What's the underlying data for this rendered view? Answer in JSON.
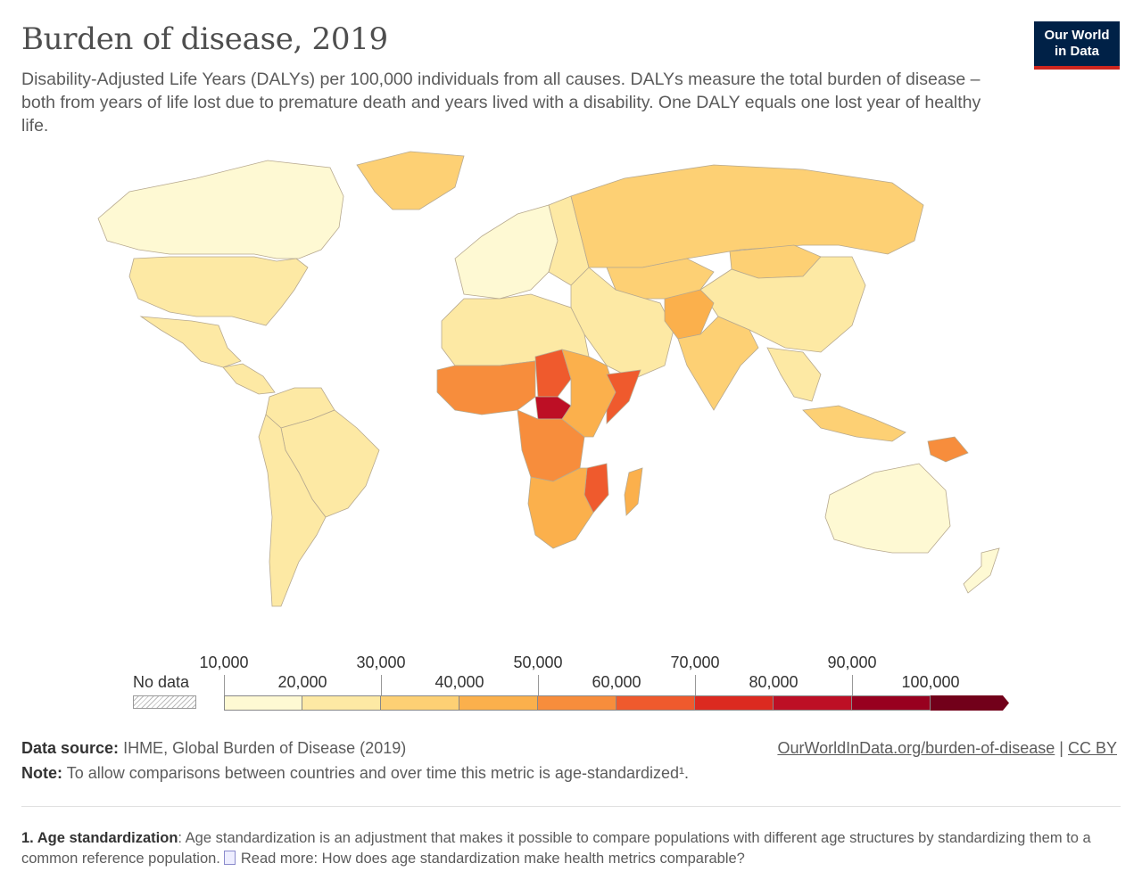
{
  "title": "Burden of disease, 2019",
  "subtitle": "Disability-Adjusted Life Years (DALYs) per 100,000 individuals from all causes. DALYs measure the total burden of disease – both from years of life lost due to premature death and years lived with a disability. One DALY equals one lost year of healthy life.",
  "logo": {
    "line1": "Our World",
    "line2": "in Data",
    "bg": "#002147",
    "accent": "#ce261e"
  },
  "legend": {
    "no_data_label": "No data",
    "upper_labels": [
      "10,000",
      "30,000",
      "50,000",
      "70,000",
      "90,000"
    ],
    "lower_labels": [
      "20,000",
      "40,000",
      "60,000",
      "80,000",
      "100,000"
    ],
    "bins": [
      {
        "min": 10000,
        "max": 20000,
        "color": "#fef9d3"
      },
      {
        "min": 20000,
        "max": 30000,
        "color": "#fde9a4"
      },
      {
        "min": 30000,
        "max": 40000,
        "color": "#fdd074"
      },
      {
        "min": 40000,
        "max": 50000,
        "color": "#fbb04c"
      },
      {
        "min": 50000,
        "max": 60000,
        "color": "#f78d3c"
      },
      {
        "min": 60000,
        "max": 70000,
        "color": "#ef5a2d"
      },
      {
        "min": 70000,
        "max": 80000,
        "color": "#dc2a20"
      },
      {
        "min": 80000,
        "max": 90000,
        "color": "#bd0f25"
      },
      {
        "min": 90000,
        "max": 100000,
        "color": "#98001f"
      },
      {
        "min": 100000,
        "max": 110000,
        "color": "#72001a"
      }
    ]
  },
  "regions": [
    {
      "name": "Canada",
      "value": 15000
    },
    {
      "name": "United States",
      "value": 24000
    },
    {
      "name": "Mexico",
      "value": 24000
    },
    {
      "name": "Central America",
      "value": 26000
    },
    {
      "name": "South America North",
      "value": 26000
    },
    {
      "name": "Brazil",
      "value": 26000
    },
    {
      "name": "South America South",
      "value": 23000
    },
    {
      "name": "Greenland",
      "value": 32000
    },
    {
      "name": "Western Europe",
      "value": 17000
    },
    {
      "name": "Eastern Europe",
      "value": 25000
    },
    {
      "name": "Russia",
      "value": 30000
    },
    {
      "name": "Central Asia",
      "value": 30000
    },
    {
      "name": "Mongolia",
      "value": 36000
    },
    {
      "name": "China",
      "value": 22000
    },
    {
      "name": "Middle East",
      "value": 24000
    },
    {
      "name": "North Africa",
      "value": 25000
    },
    {
      "name": "Pakistan & Afghanistan",
      "value": 48000
    },
    {
      "name": "India",
      "value": 32000
    },
    {
      "name": "Southeast Asia",
      "value": 29000
    },
    {
      "name": "West Africa",
      "value": 52000
    },
    {
      "name": "Chad",
      "value": 65000
    },
    {
      "name": "Central African Republic",
      "value": 85000
    },
    {
      "name": "Central Africa",
      "value": 50000
    },
    {
      "name": "Somalia",
      "value": 62000
    },
    {
      "name": "East Africa",
      "value": 45000
    },
    {
      "name": "Southern Africa",
      "value": 45000
    },
    {
      "name": "Mozambique",
      "value": 62000
    },
    {
      "name": "Madagascar",
      "value": 44000
    },
    {
      "name": "Australia",
      "value": 14000
    },
    {
      "name": "New Zealand",
      "value": 16000
    },
    {
      "name": "Papua New Guinea",
      "value": 55000
    },
    {
      "name": "Indonesia",
      "value": 31000
    }
  ],
  "source": {
    "label": "Data source:",
    "text": "IHME, Global Burden of Disease (2019)"
  },
  "note": {
    "label": "Note:",
    "text": "To allow comparisons between countries and over time this metric is age-standardized¹."
  },
  "link": {
    "url_text": "OurWorldInData.org/burden-of-disease",
    "separator": "|",
    "license": "CC BY"
  },
  "footnote": {
    "label": "1. Age standardization",
    "text": ": Age standardization is an adjustment that makes it possible to compare populations with different age structures by standardizing them to a common reference population.",
    "read_more": "Read more: How does age standardization make health metrics comparable?"
  }
}
